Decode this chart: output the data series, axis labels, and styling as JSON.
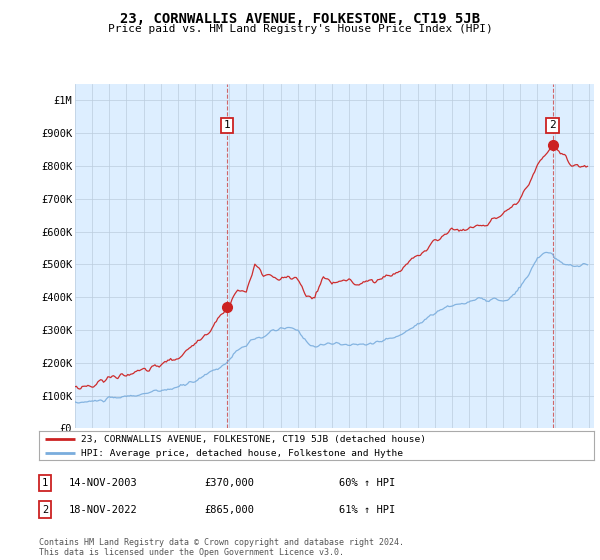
{
  "title": "23, CORNWALLIS AVENUE, FOLKESTONE, CT19 5JB",
  "subtitle": "Price paid vs. HM Land Registry's House Price Index (HPI)",
  "ylim": [
    0,
    1050000
  ],
  "yticks": [
    0,
    100000,
    200000,
    300000,
    400000,
    500000,
    600000,
    700000,
    800000,
    900000,
    1000000
  ],
  "ytick_labels": [
    "£0",
    "£100K",
    "£200K",
    "£300K",
    "£400K",
    "£500K",
    "£600K",
    "£700K",
    "£800K",
    "£900K",
    "£1M"
  ],
  "x_start_year": 1995,
  "x_end_year": 2025,
  "sale1_date": "14-NOV-2003",
  "sale1_price": 370000,
  "sale1_hpi_pct": "60%",
  "sale2_date": "18-NOV-2022",
  "sale2_price": 865000,
  "sale2_hpi_pct": "61%",
  "line_color_red": "#cc2222",
  "line_color_blue": "#7aaddd",
  "dashed_line_color": "#cc4444",
  "background_color": "#ffffff",
  "plot_bg_color": "#ddeeff",
  "grid_color": "#bbccdd",
  "legend_text_red": "23, CORNWALLIS AVENUE, FOLKESTONE, CT19 5JB (detached house)",
  "legend_text_blue": "HPI: Average price, detached house, Folkestone and Hythe",
  "footer_text": "Contains HM Land Registry data © Crown copyright and database right 2024.\nThis data is licensed under the Open Government Licence v3.0.",
  "label1": "1",
  "label2": "2",
  "sale1_x": 2003.88,
  "sale2_x": 2022.88,
  "red_keypoints": [
    [
      1995.0,
      125000
    ],
    [
      1996.0,
      130000
    ],
    [
      1997.0,
      155000
    ],
    [
      1998.0,
      165000
    ],
    [
      1999.0,
      175000
    ],
    [
      2000.0,
      195000
    ],
    [
      2001.0,
      215000
    ],
    [
      2002.0,
      255000
    ],
    [
      2003.0,
      310000
    ],
    [
      2003.88,
      370000
    ],
    [
      2004.5,
      420000
    ],
    [
      2005.0,
      415000
    ],
    [
      2005.5,
      500000
    ],
    [
      2006.0,
      470000
    ],
    [
      2006.5,
      460000
    ],
    [
      2007.0,
      455000
    ],
    [
      2007.5,
      460000
    ],
    [
      2008.0,
      455000
    ],
    [
      2008.5,
      400000
    ],
    [
      2009.0,
      400000
    ],
    [
      2009.5,
      460000
    ],
    [
      2010.0,
      440000
    ],
    [
      2010.5,
      450000
    ],
    [
      2011.0,
      455000
    ],
    [
      2011.5,
      440000
    ],
    [
      2012.0,
      445000
    ],
    [
      2012.5,
      450000
    ],
    [
      2013.0,
      460000
    ],
    [
      2013.5,
      470000
    ],
    [
      2014.0,
      480000
    ],
    [
      2014.5,
      510000
    ],
    [
      2015.0,
      530000
    ],
    [
      2015.5,
      540000
    ],
    [
      2016.0,
      570000
    ],
    [
      2016.5,
      590000
    ],
    [
      2017.0,
      610000
    ],
    [
      2017.5,
      600000
    ],
    [
      2018.0,
      610000
    ],
    [
      2018.5,
      620000
    ],
    [
      2019.0,
      620000
    ],
    [
      2019.5,
      640000
    ],
    [
      2020.0,
      650000
    ],
    [
      2020.5,
      670000
    ],
    [
      2021.0,
      700000
    ],
    [
      2021.5,
      740000
    ],
    [
      2022.0,
      800000
    ],
    [
      2022.5,
      840000
    ],
    [
      2022.88,
      865000
    ],
    [
      2023.0,
      860000
    ],
    [
      2023.3,
      840000
    ],
    [
      2023.6,
      830000
    ],
    [
      2024.0,
      800000
    ],
    [
      2024.5,
      800000
    ],
    [
      2025.0,
      800000
    ]
  ],
  "blue_keypoints": [
    [
      1995.0,
      78000
    ],
    [
      1996.0,
      82000
    ],
    [
      1997.0,
      90000
    ],
    [
      1998.0,
      97000
    ],
    [
      1999.0,
      105000
    ],
    [
      2000.0,
      115000
    ],
    [
      2001.0,
      125000
    ],
    [
      2002.0,
      145000
    ],
    [
      2003.0,
      175000
    ],
    [
      2003.88,
      200000
    ],
    [
      2004.5,
      240000
    ],
    [
      2005.0,
      255000
    ],
    [
      2005.5,
      270000
    ],
    [
      2006.0,
      280000
    ],
    [
      2006.5,
      295000
    ],
    [
      2007.0,
      305000
    ],
    [
      2007.5,
      305000
    ],
    [
      2008.0,
      300000
    ],
    [
      2008.5,
      265000
    ],
    [
      2009.0,
      250000
    ],
    [
      2009.5,
      255000
    ],
    [
      2010.0,
      260000
    ],
    [
      2010.5,
      255000
    ],
    [
      2011.0,
      255000
    ],
    [
      2011.5,
      255000
    ],
    [
      2012.0,
      258000
    ],
    [
      2012.5,
      262000
    ],
    [
      2013.0,
      268000
    ],
    [
      2013.5,
      275000
    ],
    [
      2014.0,
      285000
    ],
    [
      2014.5,
      300000
    ],
    [
      2015.0,
      320000
    ],
    [
      2015.5,
      335000
    ],
    [
      2016.0,
      350000
    ],
    [
      2016.5,
      365000
    ],
    [
      2017.0,
      375000
    ],
    [
      2017.5,
      380000
    ],
    [
      2018.0,
      385000
    ],
    [
      2018.5,
      395000
    ],
    [
      2019.0,
      390000
    ],
    [
      2019.5,
      395000
    ],
    [
      2020.0,
      385000
    ],
    [
      2020.5,
      400000
    ],
    [
      2021.0,
      430000
    ],
    [
      2021.5,
      470000
    ],
    [
      2022.0,
      520000
    ],
    [
      2022.5,
      540000
    ],
    [
      2022.88,
      530000
    ],
    [
      2023.0,
      515000
    ],
    [
      2023.3,
      510000
    ],
    [
      2023.5,
      500000
    ],
    [
      2024.0,
      495000
    ],
    [
      2024.5,
      498000
    ],
    [
      2025.0,
      498000
    ]
  ]
}
